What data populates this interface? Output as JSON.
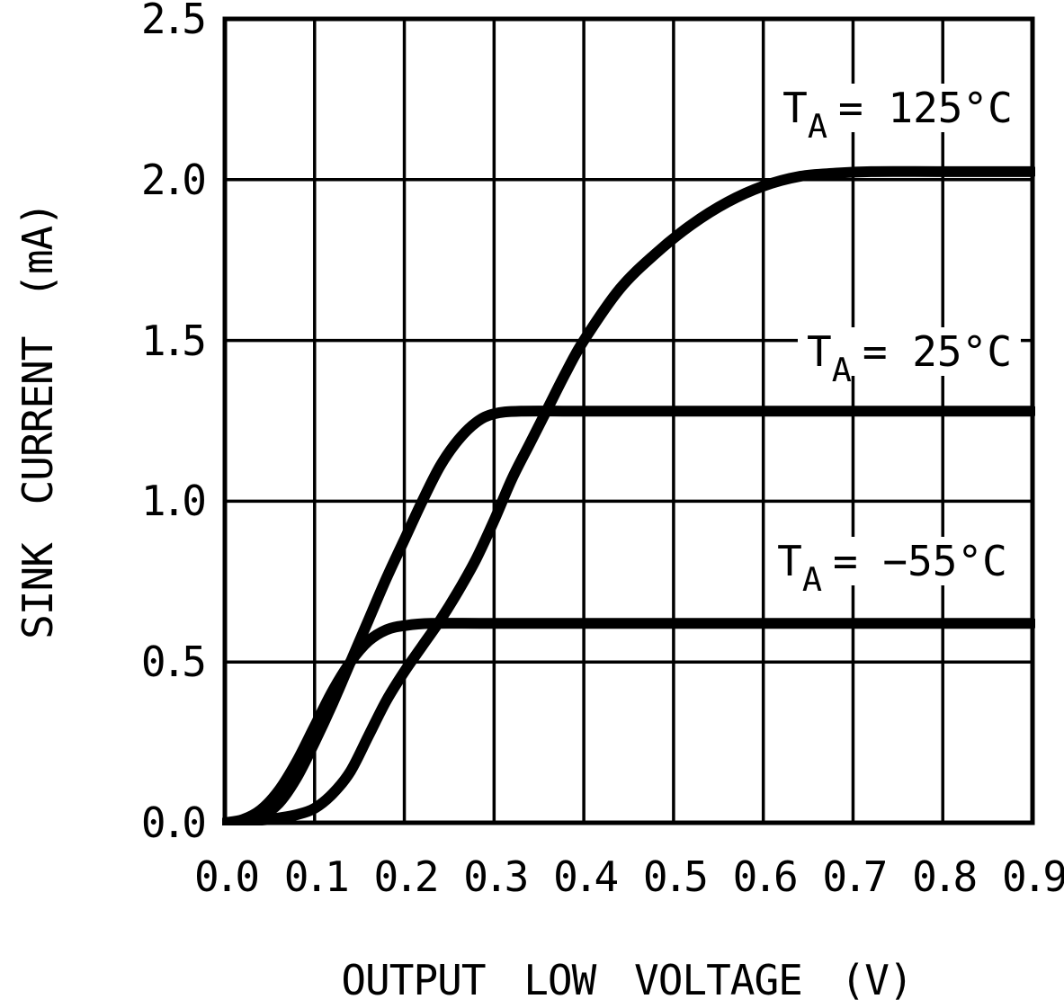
{
  "chart_data": {
    "type": "line",
    "title": "",
    "xlabel": "OUTPUT LOW VOLTAGE (V)",
    "ylabel": "SINK CURRENT (mA)",
    "xlim": [
      0,
      0.9
    ],
    "ylim": [
      0,
      2.5
    ],
    "grid": true,
    "background": "#ffffff",
    "line_color": "#000000",
    "x_ticks": [
      0,
      0.1,
      0.2,
      0.3,
      0.4,
      0.5,
      0.6,
      0.7,
      0.8,
      0.9
    ],
    "x_tick_labels": [
      "0.0",
      "0.1",
      "0.2",
      "0.3",
      "0.4",
      "0.5",
      "0.6",
      "0.7",
      "0.8",
      "0.9"
    ],
    "y_ticks": [
      0,
      0.5,
      1.0,
      1.5,
      2.0,
      2.5
    ],
    "y_tick_labels": [
      "0.0",
      "0.5",
      "1.0",
      "1.5",
      "2.0",
      "2.5"
    ],
    "series": [
      {
        "name": "TA = 125degC",
        "saturation_mA": 2.02,
        "points": [
          [
            0,
            0
          ],
          [
            0.02,
            0.003
          ],
          [
            0.04,
            0.008
          ],
          [
            0.06,
            0.015
          ],
          [
            0.08,
            0.025
          ],
          [
            0.1,
            0.045
          ],
          [
            0.12,
            0.09
          ],
          [
            0.14,
            0.16
          ],
          [
            0.16,
            0.27
          ],
          [
            0.18,
            0.38
          ],
          [
            0.2,
            0.47
          ],
          [
            0.22,
            0.55
          ],
          [
            0.24,
            0.63
          ],
          [
            0.26,
            0.72
          ],
          [
            0.28,
            0.82
          ],
          [
            0.3,
            0.94
          ],
          [
            0.32,
            1.07
          ],
          [
            0.34,
            1.18
          ],
          [
            0.36,
            1.29
          ],
          [
            0.38,
            1.4
          ],
          [
            0.4,
            1.5
          ],
          [
            0.44,
            1.66
          ],
          [
            0.48,
            1.77
          ],
          [
            0.52,
            1.86
          ],
          [
            0.56,
            1.93
          ],
          [
            0.6,
            1.98
          ],
          [
            0.64,
            2.01
          ],
          [
            0.68,
            2.02
          ],
          [
            0.72,
            2.025
          ],
          [
            0.8,
            2.025
          ],
          [
            0.9,
            2.025
          ]
        ]
      },
      {
        "name": "TA = 25degC",
        "saturation_mA": 1.28,
        "points": [
          [
            0,
            0
          ],
          [
            0.02,
            0.005
          ],
          [
            0.04,
            0.02
          ],
          [
            0.06,
            0.06
          ],
          [
            0.08,
            0.14
          ],
          [
            0.1,
            0.25
          ],
          [
            0.12,
            0.37
          ],
          [
            0.14,
            0.5
          ],
          [
            0.16,
            0.63
          ],
          [
            0.18,
            0.76
          ],
          [
            0.2,
            0.88
          ],
          [
            0.22,
            1.0
          ],
          [
            0.24,
            1.11
          ],
          [
            0.26,
            1.19
          ],
          [
            0.28,
            1.245
          ],
          [
            0.3,
            1.272
          ],
          [
            0.33,
            1.28
          ],
          [
            0.4,
            1.28
          ],
          [
            0.55,
            1.28
          ],
          [
            0.7,
            1.28
          ],
          [
            0.9,
            1.28
          ]
        ]
      },
      {
        "name": "TA = -55degC",
        "saturation_mA": 0.62,
        "points": [
          [
            0,
            0
          ],
          [
            0.02,
            0.01
          ],
          [
            0.04,
            0.04
          ],
          [
            0.06,
            0.1
          ],
          [
            0.08,
            0.19
          ],
          [
            0.1,
            0.3
          ],
          [
            0.12,
            0.41
          ],
          [
            0.14,
            0.5
          ],
          [
            0.16,
            0.565
          ],
          [
            0.18,
            0.6
          ],
          [
            0.2,
            0.613
          ],
          [
            0.23,
            0.62
          ],
          [
            0.3,
            0.62
          ],
          [
            0.45,
            0.62
          ],
          [
            0.6,
            0.62
          ],
          [
            0.75,
            0.62
          ],
          [
            0.9,
            0.62
          ]
        ]
      }
    ],
    "annotations": [
      {
        "symbol": "T",
        "subscript": "A",
        "value": "= 125°C"
      },
      {
        "symbol": "T",
        "subscript": "A",
        "value": "= 25°C"
      },
      {
        "symbol": "T",
        "subscript": "A",
        "value": "= −55°C"
      }
    ]
  }
}
